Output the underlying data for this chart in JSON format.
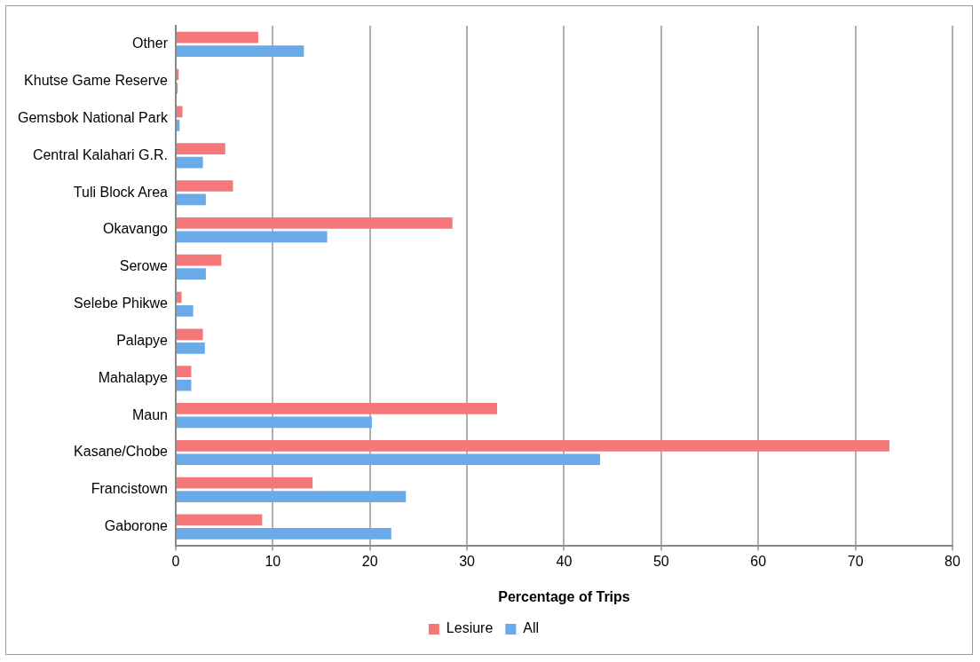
{
  "chart_data": {
    "type": "bar",
    "orientation": "horizontal",
    "xlabel": "Percentage of Trips",
    "categories": [
      "Other",
      "Khutse Game Reserve",
      "Gemsbok National Park",
      "Central Kalahari G.R.",
      "Tuli Block Area",
      "Okavango",
      "Serowe",
      "Selebe Phikwe",
      "Palapye",
      "Mahalapye",
      "Maun",
      "Kasane/Chobe",
      "Francistown",
      "Gaborone"
    ],
    "series": [
      {
        "name": "Lesiure",
        "color": "#f4777a",
        "values": [
          8.5,
          0.3,
          0.7,
          5.1,
          5.9,
          28.5,
          4.7,
          0.6,
          2.8,
          1.6,
          33.1,
          73.5,
          14.1,
          8.9
        ]
      },
      {
        "name": "All",
        "color": "#6aaae8",
        "values": [
          13.2,
          0.2,
          0.4,
          2.8,
          3.1,
          15.6,
          3.1,
          1.8,
          3.0,
          1.6,
          20.2,
          43.7,
          23.7,
          22.2
        ]
      }
    ],
    "xlim": [
      0,
      80
    ],
    "xticks": [
      0,
      10,
      20,
      30,
      40,
      50,
      60,
      70,
      80
    ],
    "grid": "x",
    "legend": "bottom"
  }
}
